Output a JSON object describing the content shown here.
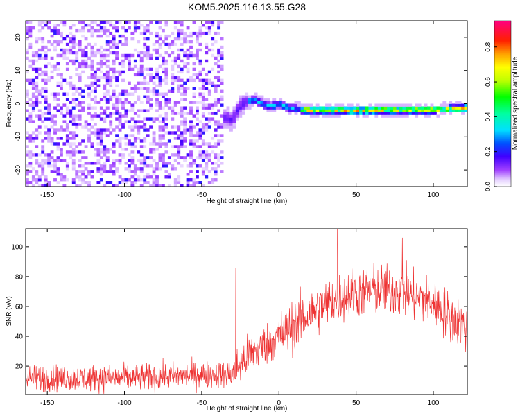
{
  "title": "KOM5.2025.116.13.55.G28",
  "chart_data": [
    {
      "type": "heatmap",
      "xlabel": "Height of straight line (km)",
      "ylabel": "Frequency (Hz)",
      "xlim": [
        -164,
        122
      ],
      "ylim": [
        -25,
        25
      ],
      "xticks": [
        -150,
        -100,
        -50,
        0,
        50,
        100
      ],
      "yticks": [
        -20,
        -10,
        0,
        10,
        20
      ],
      "colorbar": {
        "label": "Normalized spectral amplitude",
        "range": [
          0,
          0.95
        ],
        "ticks": [
          0.0,
          0.2,
          0.4,
          0.6,
          0.8
        ],
        "tick_labels": [
          "0.0",
          "0.2",
          "0.4",
          "0.6",
          "0.8"
        ],
        "colormap": [
          "#ffffff",
          "#e0c8ff",
          "#8000ff",
          "#0000ff",
          "#00ffff",
          "#00ff00",
          "#ffff00",
          "#ff8000",
          "#ff0000",
          "#ff0080"
        ]
      },
      "noise_region": {
        "x": [
          -164,
          -36
        ],
        "amplitude": 0.15
      },
      "signal_ridge": [
        {
          "x": -38,
          "y": -3.5
        },
        {
          "x": -30,
          "y": -5
        },
        {
          "x": -26,
          "y": -1
        },
        {
          "x": -22,
          "y": 0.5
        },
        {
          "x": -16,
          "y": 1.2
        },
        {
          "x": -10,
          "y": 0
        },
        {
          "x": -4,
          "y": -0.8
        },
        {
          "x": 0,
          "y": 0
        },
        {
          "x": 5,
          "y": -1
        },
        {
          "x": 15,
          "y": -1.8
        },
        {
          "x": 30,
          "y": -1.8
        },
        {
          "x": 50,
          "y": -2
        },
        {
          "x": 70,
          "y": -1.8
        },
        {
          "x": 90,
          "y": -1.8
        },
        {
          "x": 105,
          "y": -1.7
        },
        {
          "x": 122,
          "y": -1.4
        }
      ]
    },
    {
      "type": "line",
      "xlabel": "Height of straight line (km)",
      "ylabel": "SNR (v/v)",
      "xlim": [
        -164,
        122
      ],
      "ylim": [
        1,
        112
      ],
      "xticks": [
        -150,
        -100,
        -50,
        0,
        50,
        100
      ],
      "yticks": [
        20,
        40,
        60,
        80,
        100
      ],
      "color": "#ee3333",
      "trend": [
        {
          "x": -164,
          "y": 12
        },
        {
          "x": -100,
          "y": 12
        },
        {
          "x": -50,
          "y": 14
        },
        {
          "x": -30,
          "y": 15
        },
        {
          "x": -20,
          "y": 27
        },
        {
          "x": 0,
          "y": 40
        },
        {
          "x": 20,
          "y": 55
        },
        {
          "x": 40,
          "y": 67
        },
        {
          "x": 60,
          "y": 71
        },
        {
          "x": 80,
          "y": 70
        },
        {
          "x": 100,
          "y": 62
        },
        {
          "x": 122,
          "y": 45
        }
      ],
      "spikes": [
        {
          "x": -28,
          "y": 86
        },
        {
          "x": 38,
          "y": 112
        },
        {
          "x": 80,
          "y": 106
        }
      ]
    }
  ]
}
